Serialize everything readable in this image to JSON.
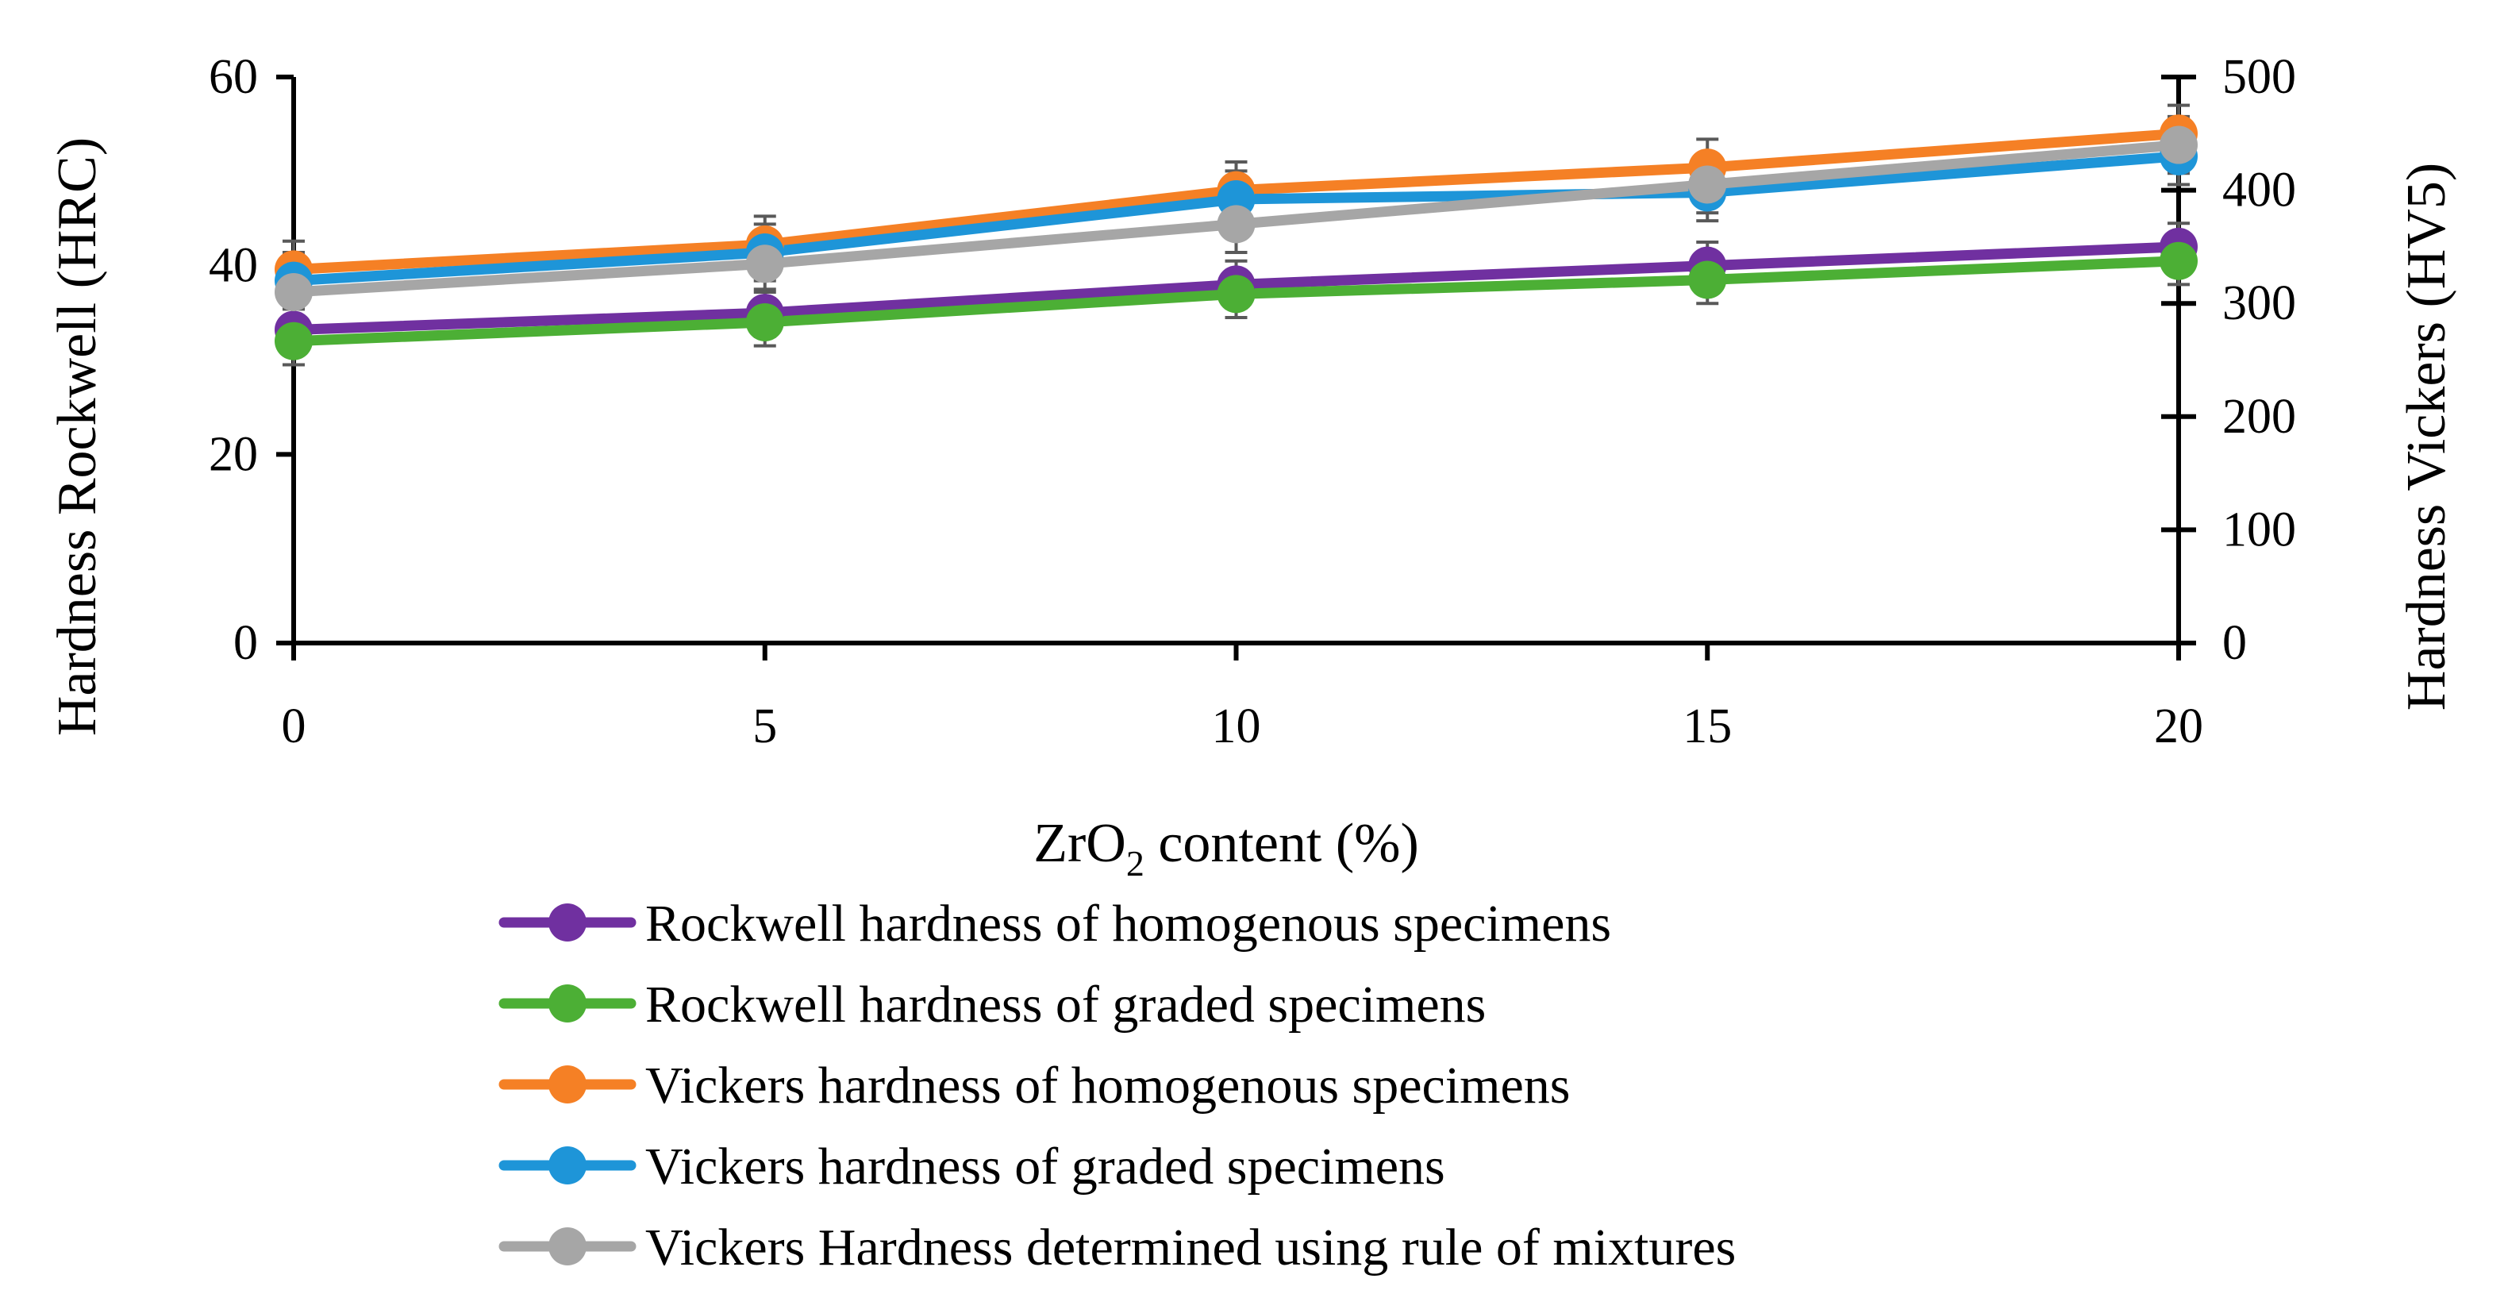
{
  "chart_data": {
    "type": "line",
    "title": "",
    "x": [
      0,
      5,
      10,
      15,
      20
    ],
    "x_tick_labels": [
      "0",
      "5",
      "10",
      "15",
      "20"
    ],
    "xlabel_main": "ZrO",
    "xlabel_sub": "2",
    "xlabel_suffix": " content (%)",
    "xlim": [
      0,
      20
    ],
    "ylabel_left": "Hardness Rockwell (HRC)",
    "ylim_left": [
      0,
      60
    ],
    "y_left_ticks": [
      0,
      20,
      40,
      60
    ],
    "y_left_tick_labels": [
      "0",
      "20",
      "40",
      "60"
    ],
    "ylabel_right": "Hardness Vickers (HV5)",
    "ylim_right": [
      0,
      500
    ],
    "y_right_ticks": [
      0,
      100,
      200,
      300,
      400,
      500
    ],
    "y_right_tick_labels": [
      "0",
      "100",
      "200",
      "300",
      "400",
      "500"
    ],
    "grid": false,
    "legend_position": "bottom",
    "series": [
      {
        "name": "Rockwell hardness of homogenous specimens",
        "axis": "left",
        "color": "#7030A0",
        "values": [
          33.2,
          35,
          38,
          40,
          42
        ],
        "errors": [
          2.5,
          2.5,
          2.5,
          2.5,
          2.5
        ]
      },
      {
        "name": "Rockwell hardness of graded specimens",
        "axis": "left",
        "color": "#4CAF35",
        "values": [
          32,
          34,
          37,
          38.5,
          40.5
        ],
        "errors": [
          2.5,
          2.5,
          2.5,
          2.5,
          2.5
        ]
      },
      {
        "name": "Vickers hardness of homogenous specimens",
        "axis": "right",
        "color": "#F58025",
        "values": [
          330,
          352,
          400,
          420,
          450
        ],
        "errors": [
          25,
          25,
          25,
          25,
          25
        ]
      },
      {
        "name": "Vickers hardness of graded specimens",
        "axis": "right",
        "color": "#1E95D8",
        "values": [
          320,
          345,
          392,
          398,
          430
        ],
        "errors": [
          25,
          25,
          25,
          25,
          25
        ]
      },
      {
        "name": "Vickers Hardness determined using rule of mixtures",
        "axis": "right",
        "color": "#A6A6A6",
        "values": [
          310,
          335,
          370,
          405,
          440
        ],
        "errors": [
          25,
          25,
          25,
          25,
          25
        ]
      }
    ]
  }
}
